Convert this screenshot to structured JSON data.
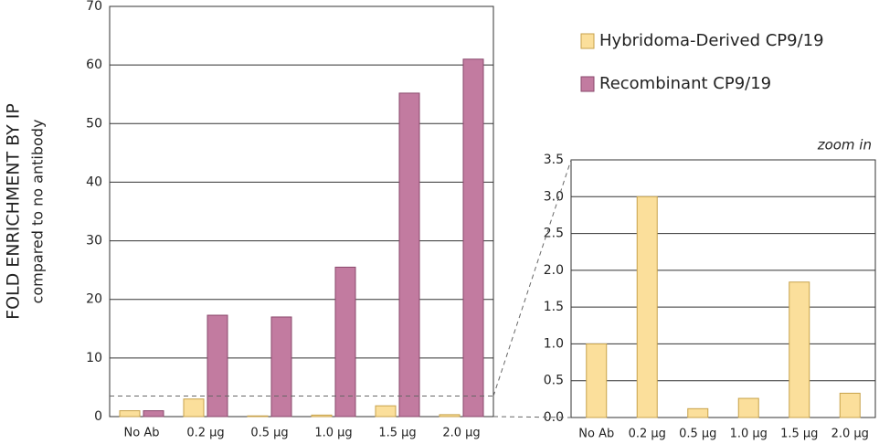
{
  "chart_data": [
    {
      "type": "bar",
      "ylabel": "FOLD ENRICHMENT BY IP",
      "ylabel2": "compared to no antibody",
      "categories": [
        "No Ab",
        "0.2 µg",
        "0.5 µg",
        "1.0 µg",
        "1.5 µg",
        "2.0 µg"
      ],
      "series": [
        {
          "name": "Hybridoma-Derived CP9/19",
          "color": "#fbdf9b",
          "values": [
            1,
            3,
            0.12,
            0.26,
            1.84,
            0.33
          ]
        },
        {
          "name": "Recombinant CP9/19",
          "color": "#c27ba0",
          "values": [
            1,
            17.3,
            17,
            25.5,
            55.2,
            61
          ]
        }
      ],
      "ylim": [
        0,
        70
      ],
      "yticks": [
        0,
        10,
        20,
        30,
        40,
        50,
        60,
        70
      ],
      "grid": true
    },
    {
      "type": "bar",
      "title": "zoom in",
      "categories": [
        "No Ab",
        "0.2 µg",
        "0.5 µg",
        "1.0 µg",
        "1.5 µg",
        "2.0 µg"
      ],
      "values": [
        1,
        3,
        0.12,
        0.26,
        1.84,
        0.33
      ],
      "color": "#fbdf9b",
      "ylim": [
        0,
        3.5
      ],
      "yticks": [
        {
          "value": 0,
          "label": "0.0"
        },
        0.5,
        {
          "value": 1,
          "label": "1.0"
        },
        1.5,
        {
          "value": 2,
          "label": "2.0"
        },
        2.5,
        {
          "value": 3,
          "label": "3.0"
        },
        3.5
      ],
      "grid": true
    }
  ]
}
